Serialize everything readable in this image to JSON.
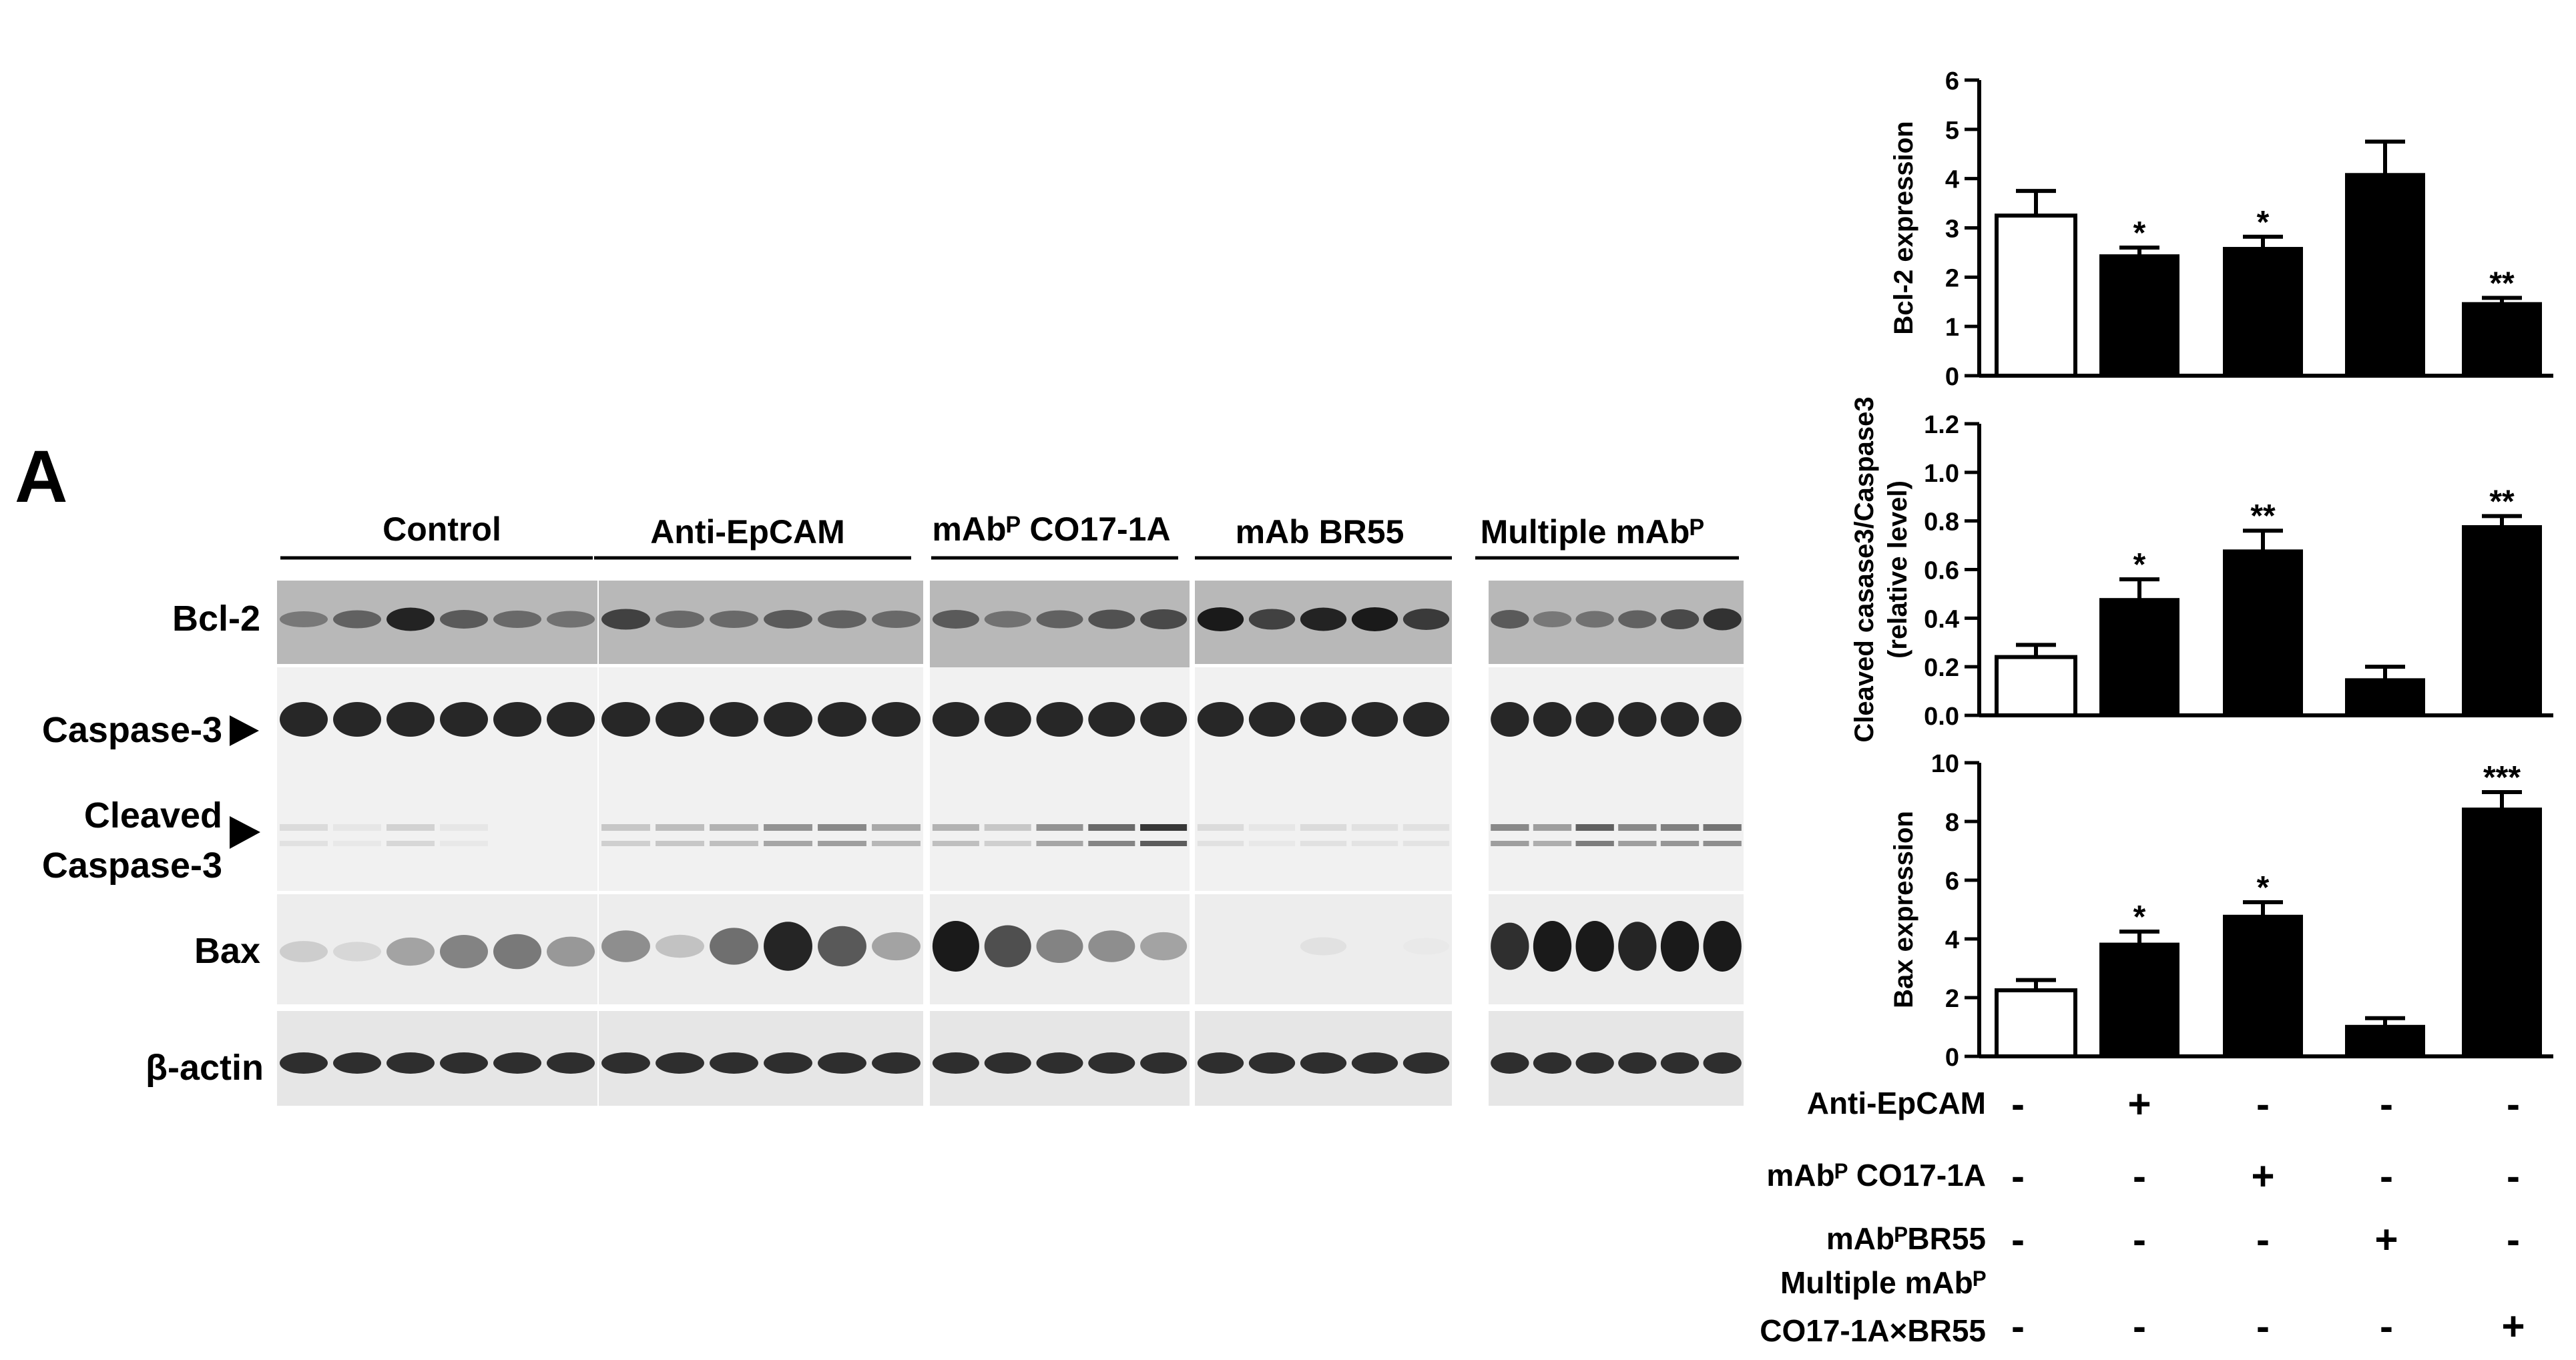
{
  "panel_label": "A",
  "blot": {
    "groups": [
      "Control",
      "Anti-EpCAM",
      "mAbᴾ CO17-1A",
      "mAb BR55",
      "Multiple mAbᴾ"
    ],
    "rows": [
      "Bcl-2",
      "Caspase-3",
      "Cleaved",
      "Caspase-3",
      "Bax",
      "β-actin"
    ]
  },
  "charts": [
    {
      "ylabel": "Bcl-2 expression",
      "yticks": [
        "0",
        "1",
        "2",
        "3",
        "4",
        "5",
        "6"
      ],
      "sig": [
        "*",
        "*",
        "**"
      ]
    },
    {
      "ylabel": "Cleaved casase3/Caspase3",
      "ylabel2": "(relative level)",
      "yticks": [
        "0.0",
        "0.2",
        "0.4",
        "0.6",
        "0.8",
        "1.0",
        "1.2"
      ],
      "sig": [
        "*",
        "**",
        "**"
      ]
    },
    {
      "ylabel": "Bax expression",
      "yticks": [
        "0",
        "2",
        "4",
        "6",
        "8",
        "10"
      ],
      "sig": [
        "*",
        "*",
        "***"
      ]
    }
  ],
  "chart_data": [
    {
      "type": "bar",
      "categories": [
        "1",
        "2",
        "3",
        "4",
        "5"
      ],
      "values": [
        3.25,
        2.45,
        2.6,
        4.1,
        1.48
      ],
      "errors": [
        0.5,
        0.15,
        0.22,
        0.65,
        0.1
      ],
      "ylim": [
        0,
        6
      ],
      "colors": [
        "#ffffff",
        "#000000",
        "#000000",
        "#000000",
        "#000000"
      ],
      "ylabel": "Bcl-2 expression"
    },
    {
      "type": "bar",
      "categories": [
        "1",
        "2",
        "3",
        "4",
        "5"
      ],
      "values": [
        0.24,
        0.48,
        0.68,
        0.15,
        0.78
      ],
      "errors": [
        0.05,
        0.08,
        0.08,
        0.05,
        0.04
      ],
      "ylim": [
        0,
        1.2
      ],
      "colors": [
        "#ffffff",
        "#000000",
        "#000000",
        "#000000",
        "#000000"
      ],
      "ylabel": "Cleaved casase3/Caspase3 (relative level)"
    },
    {
      "type": "bar",
      "categories": [
        "1",
        "2",
        "3",
        "4",
        "5"
      ],
      "values": [
        2.25,
        3.85,
        4.8,
        1.05,
        8.45
      ],
      "errors": [
        0.35,
        0.4,
        0.45,
        0.25,
        0.55
      ],
      "ylim": [
        0,
        10
      ],
      "colors": [
        "#ffffff",
        "#000000",
        "#000000",
        "#000000",
        "#000000"
      ],
      "ylabel": "Bax expression"
    }
  ],
  "treatment_table": [
    {
      "label": "Anti-EpCAM",
      "values": [
        "-",
        "+",
        "-",
        "-",
        "-"
      ]
    },
    {
      "label": "mAbᴾ CO17-1A",
      "values": [
        "-",
        "-",
        "+",
        "-",
        "-"
      ]
    },
    {
      "label": "mAbᴾBR55",
      "values": [
        "-",
        "-",
        "-",
        "+",
        "-"
      ]
    },
    {
      "label": "Multiple mAbᴾ",
      "label2": "CO17-1A×BR55",
      "values": [
        "-",
        "-",
        "-",
        "-",
        "+"
      ]
    }
  ]
}
